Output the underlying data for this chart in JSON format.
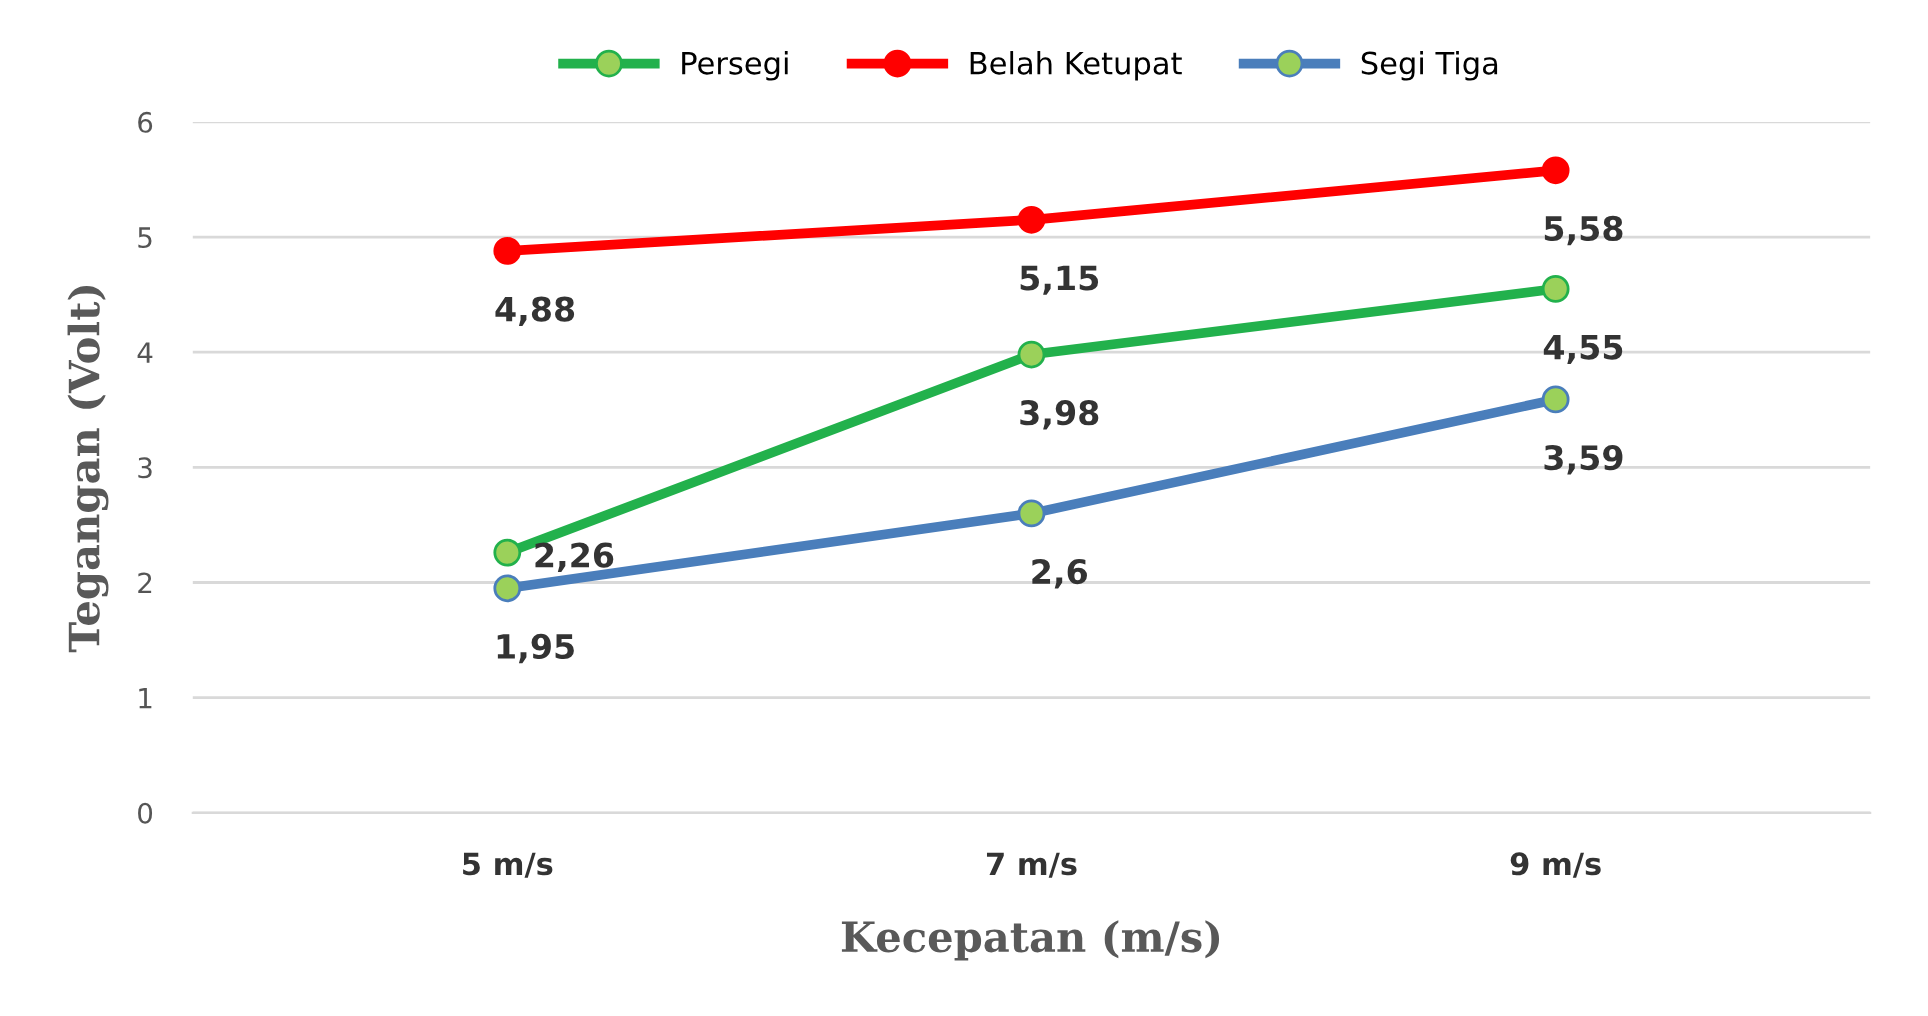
{
  "chart_data": {
    "type": "line",
    "xlabel": "Kecepatan (m/s)",
    "ylabel": "Tegangan (Volt)",
    "categories": [
      "5 m/s",
      "7 m/s",
      "9 m/s"
    ],
    "series": [
      {
        "name": "Persegi",
        "color": "#22b14c",
        "values": [
          2.26,
          3.98,
          4.55
        ],
        "value_labels": [
          "2,26",
          "3,98",
          "4,55"
        ]
      },
      {
        "name": "Belah Ketupat",
        "color": "#ff0000",
        "values": [
          4.88,
          5.15,
          5.58
        ],
        "value_labels": [
          "4,88",
          "5,15",
          "5,58"
        ]
      },
      {
        "name": "Segi Tiga",
        "color": "#4a7ebb",
        "values": [
          1.95,
          2.6,
          3.59
        ],
        "value_labels": [
          "1,95",
          "2,6",
          "3,59"
        ]
      }
    ],
    "ylim": [
      0,
      6
    ],
    "yticks": [
      0,
      1,
      2,
      3,
      4,
      5,
      6
    ],
    "grid": "y",
    "legend": "top",
    "marker": "circle",
    "line_style": "solid"
  }
}
